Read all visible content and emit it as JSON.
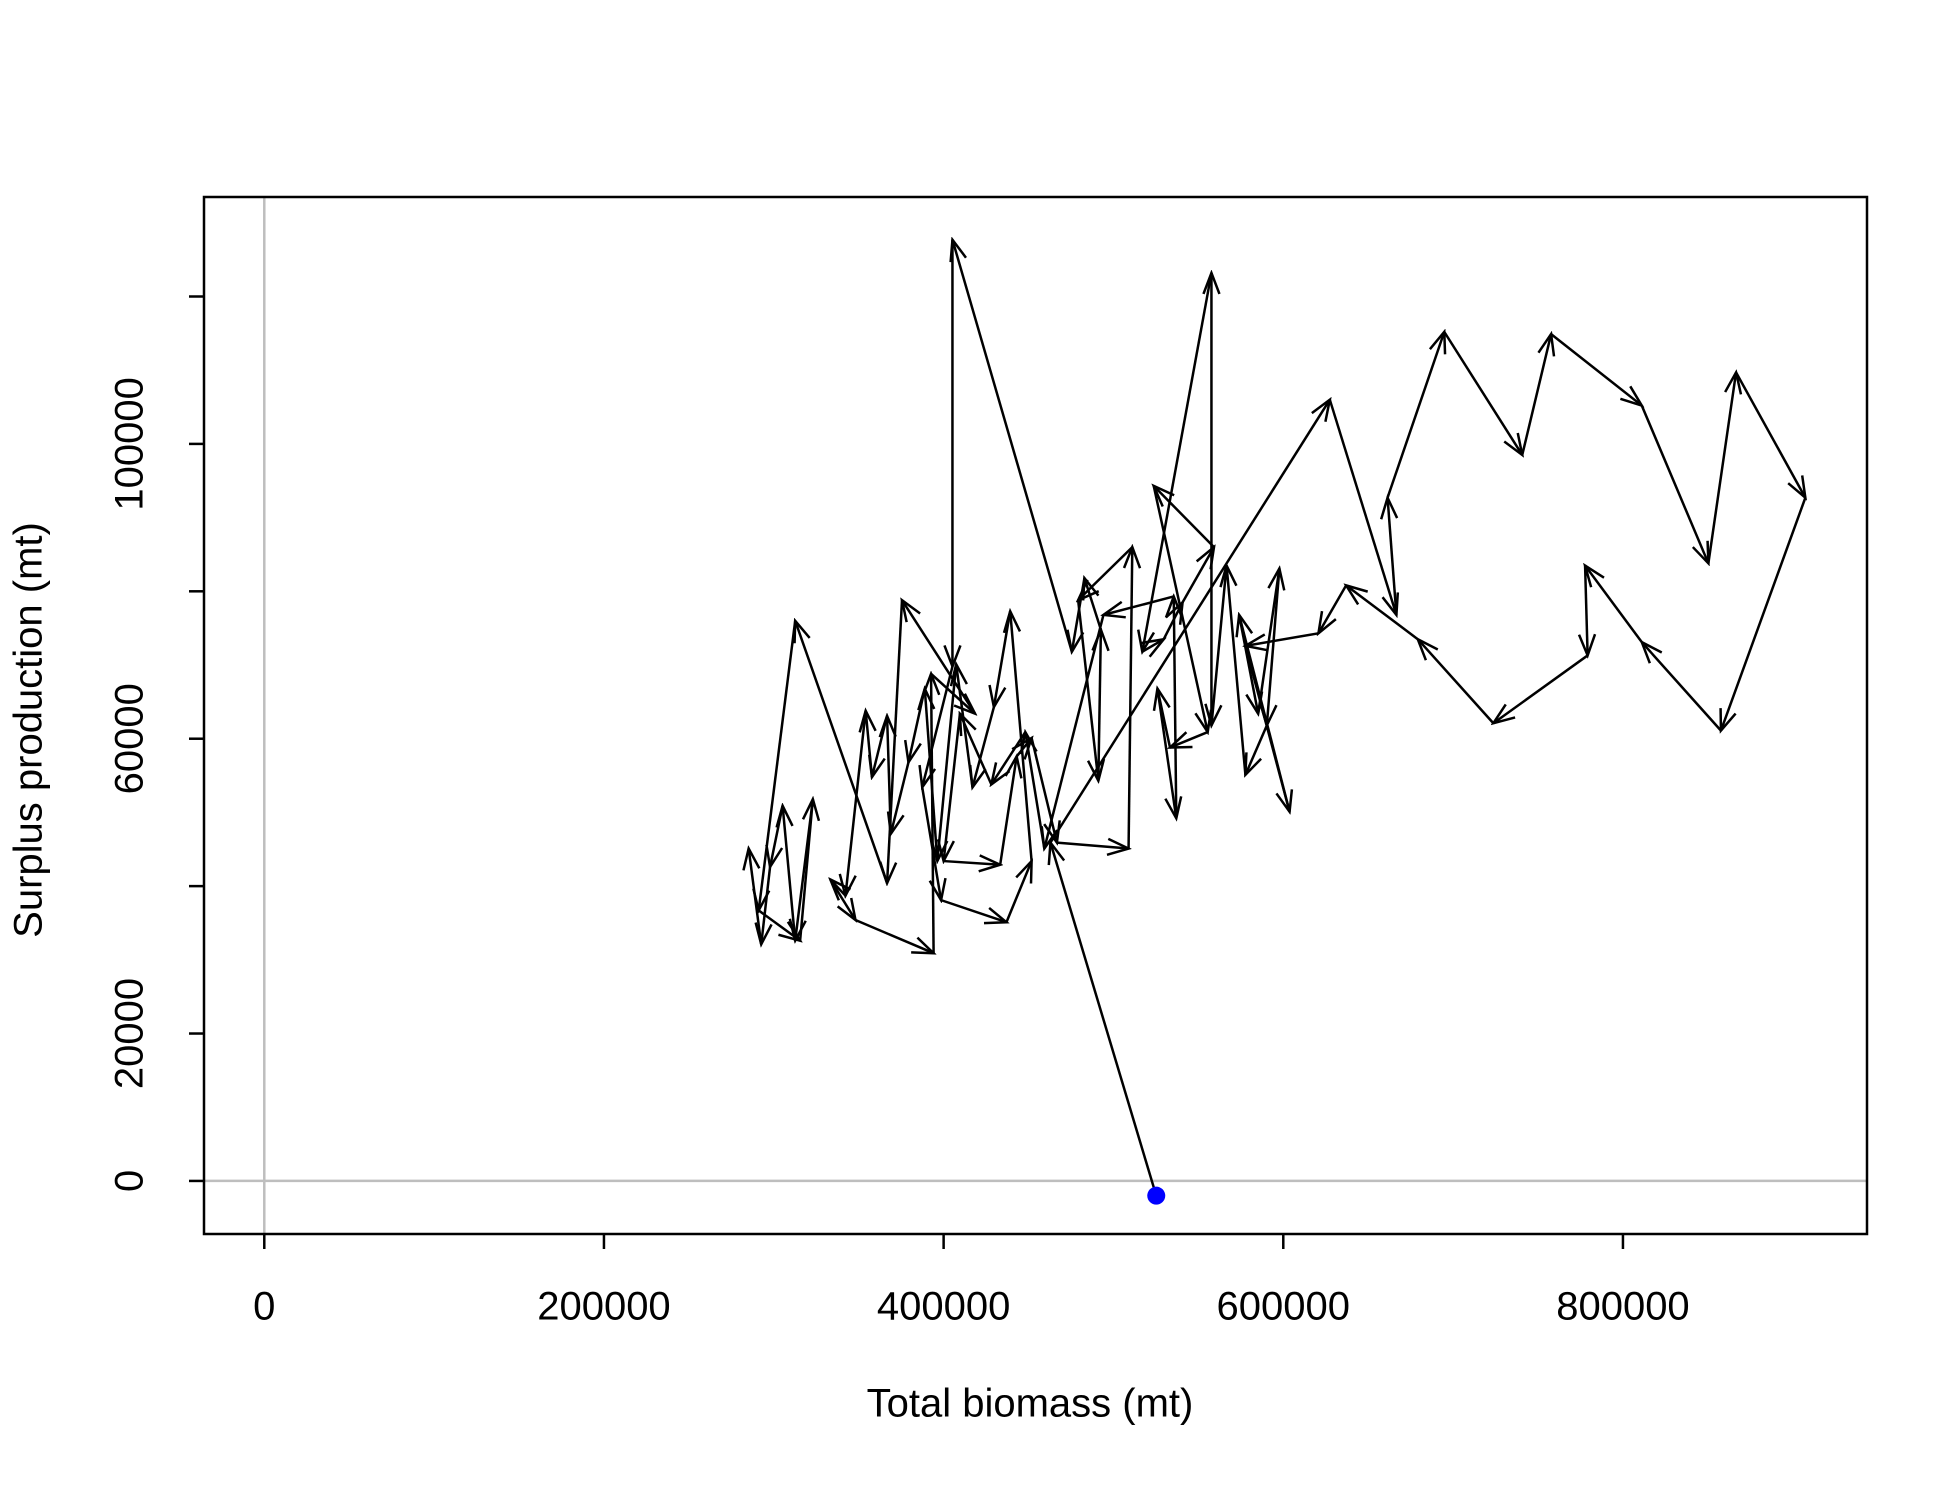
{
  "chart_data": {
    "type": "phase_arrows",
    "x_label": "Total biomass (mt)",
    "y_label": "Surplus production (mt)",
    "x": [
      525200,
      462900,
      627400,
      666600,
      661400,
      694800,
      740700,
      757700,
      811100,
      850300,
      866600,
      907400,
      857700,
      811100,
      777700,
      779200,
      723700,
      679200,
      637000,
      620700,
      577700,
      603700,
      574000,
      585200,
      597700,
      590300,
      577700,
      566600,
      557700,
      557700,
      517000,
      529600,
      540700,
      559200,
      523700,
      555500,
      533300,
      525900,
      537000,
      535500,
      494100,
      459300,
      448100,
      428100,
      409600,
      400000,
      433300,
      443000,
      451800,
      466700,
      508900,
      511100,
      479200,
      491100,
      492600,
      482900,
      475500,
      405200,
      405200,
      387400,
      398500,
      437000,
      451800,
      439200,
      429600,
      417000,
      407400,
      396300,
      388900,
      379300,
      368900,
      366700,
      357800,
      354100,
      342200,
      333300,
      348100,
      394100,
      392600,
      418500,
      375500,
      366700,
      312600,
      291100,
      315500,
      323000,
      312600,
      305200,
      297800,
      292600,
      285200
    ],
    "y": [
      -2000,
      45900,
      106000,
      76800,
      92700,
      115200,
      98500,
      114900,
      105200,
      83800,
      109700,
      92700,
      61100,
      73100,
      83500,
      71300,
      62100,
      73500,
      80800,
      74300,
      72600,
      50100,
      76800,
      63400,
      83100,
      61800,
      55100,
      83500,
      61800,
      123200,
      71800,
      73500,
      78500,
      86000,
      94300,
      60900,
      58800,
      66800,
      49200,
      79300,
      76800,
      45100,
      60900,
      53800,
      63400,
      43400,
      42900,
      57600,
      60100,
      45900,
      45100,
      86000,
      78800,
      54300,
      74800,
      81800,
      71800,
      127700,
      69800,
      53400,
      38100,
      35100,
      43400,
      77300,
      64300,
      53400,
      70100,
      43400,
      66800,
      56800,
      47100,
      63100,
      54800,
      63800,
      38700,
      40900,
      35400,
      30900,
      68800,
      63400,
      78800,
      40400,
      76000,
      36700,
      32600,
      51800,
      32600,
      50900,
      42600,
      32100,
      45100
    ],
    "color": "#000000",
    "start_marker_color": "#0000ff",
    "reference_line_color": "#bebebe",
    "reference_lines": {
      "x": 0,
      "y": 0
    },
    "xlim": [
      -35500,
      943700
    ],
    "ylim": [
      -7200,
      133500
    ],
    "xticks": [
      0,
      200000,
      400000,
      600000,
      800000
    ],
    "yticks": [
      0,
      20000,
      40000,
      60000,
      80000,
      100000,
      120000
    ],
    "ytick_labels": [
      0,
      20000,
      60000,
      100000
    ]
  }
}
